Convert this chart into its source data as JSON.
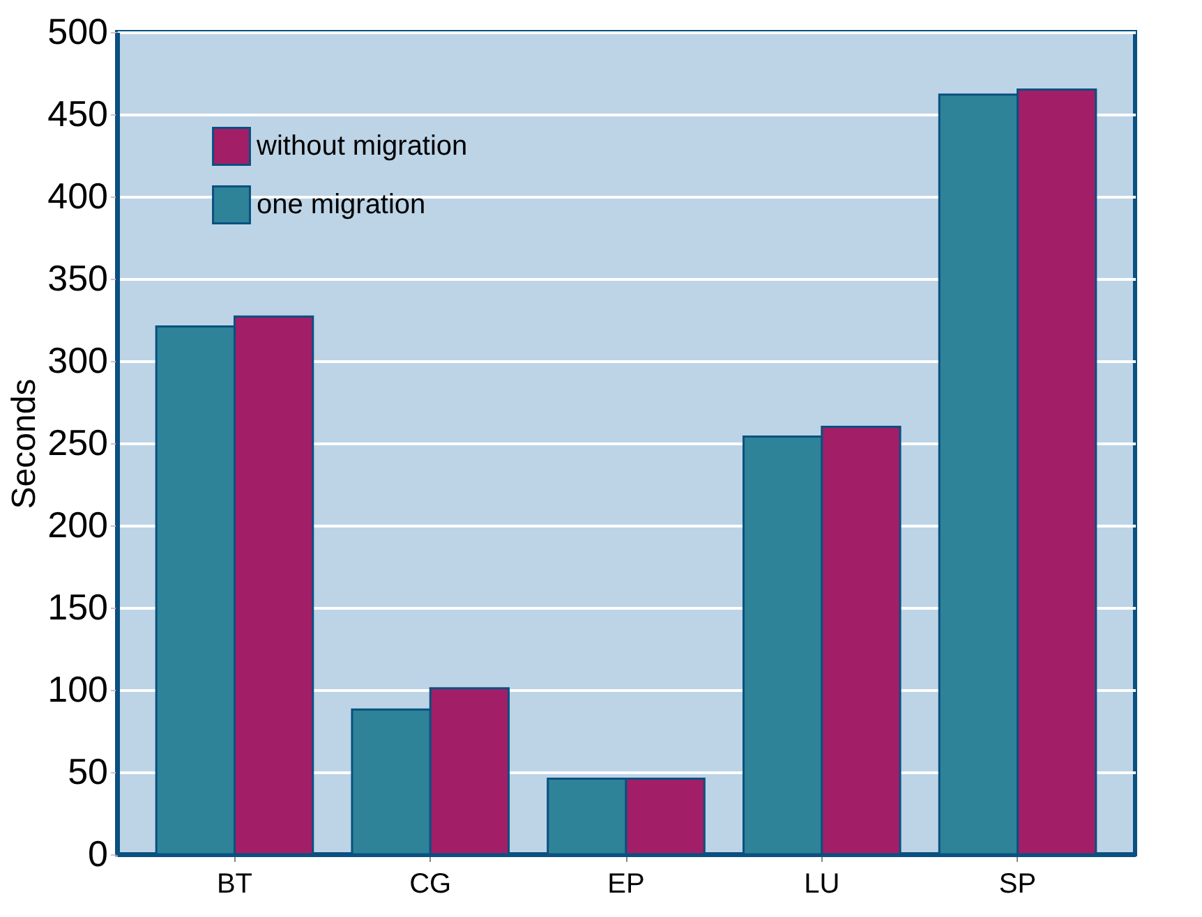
{
  "chart_data": {
    "type": "bar",
    "ylabel": "Seconds",
    "categories": [
      "BT",
      "CG",
      "EP",
      "LU",
      "SP"
    ],
    "series": [
      {
        "name": "one migration",
        "color": "#2e8398",
        "values": [
          321,
          88,
          46,
          254,
          462
        ]
      },
      {
        "name": "without migration",
        "color": "#a21f67",
        "values": [
          327,
          101,
          46,
          260,
          465
        ]
      }
    ],
    "ylim": [
      0,
      500
    ],
    "yticks": [
      0,
      50,
      100,
      150,
      200,
      250,
      300,
      350,
      400,
      450,
      500
    ],
    "grid": "y",
    "legend": "top left"
  }
}
